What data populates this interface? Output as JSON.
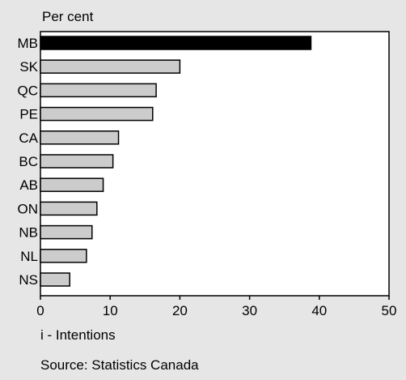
{
  "chart_data": {
    "type": "bar",
    "orientation": "horizontal",
    "ylabel": "Per cent",
    "categories": [
      "MB",
      "SK",
      "QC",
      "PE",
      "CA",
      "BC",
      "AB",
      "ON",
      "NB",
      "NL",
      "NS"
    ],
    "values": [
      38.8,
      20.0,
      16.6,
      16.1,
      11.2,
      10.4,
      9.0,
      8.1,
      7.4,
      6.6,
      4.2
    ],
    "highlight": "MB",
    "xlim": [
      0,
      50
    ],
    "xticks": [
      0,
      10,
      20,
      30,
      40,
      50
    ],
    "grid": false,
    "colors": {
      "highlight_bar": "#000000",
      "bar": "#cccccc",
      "bar_border": "#000000",
      "plot_background": "#ffffff",
      "page_background": "#e6e6e6"
    },
    "notes": [
      "i - Intentions",
      "Source: Statistics Canada"
    ]
  }
}
